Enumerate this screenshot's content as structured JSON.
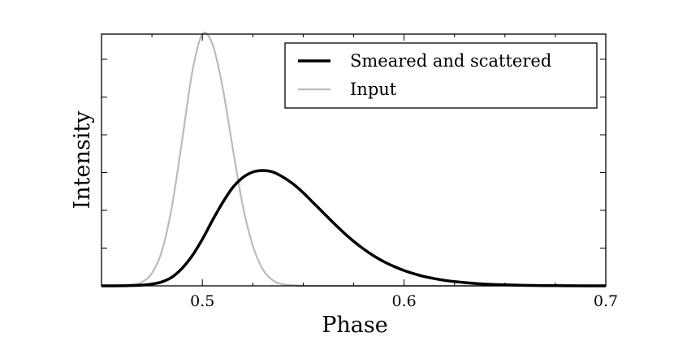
{
  "chart_data": {
    "type": "line",
    "title": "",
    "xlabel": "Phase",
    "ylabel": "Intensity",
    "xlim": [
      0.45,
      0.7
    ],
    "ylim": [
      0,
      1.0
    ],
    "xticks": [
      0.5,
      0.6,
      0.7
    ],
    "xtick_labels": [
      "0.5",
      "0.6",
      "0.7"
    ],
    "yticks": [
      0.15,
      0.3,
      0.45,
      0.6,
      0.75,
      0.9
    ],
    "ytick_labels_visible": false,
    "legend_position": "top-right",
    "series": [
      {
        "name": "Smeared and scattered",
        "color": "#000000",
        "x": [
          0.45,
          0.46,
          0.47,
          0.475,
          0.48,
          0.485,
          0.49,
          0.495,
          0.5,
          0.505,
          0.51,
          0.515,
          0.52,
          0.525,
          0.53,
          0.535,
          0.54,
          0.545,
          0.55,
          0.555,
          0.56,
          0.565,
          0.57,
          0.575,
          0.58,
          0.585,
          0.59,
          0.595,
          0.6,
          0.605,
          0.61,
          0.62,
          0.63,
          0.64,
          0.65,
          0.66,
          0.67,
          0.68,
          0.69,
          0.7
        ],
        "y": [
          0,
          0.0005,
          0.003,
          0.007,
          0.016,
          0.035,
          0.07,
          0.12,
          0.185,
          0.26,
          0.33,
          0.39,
          0.43,
          0.452,
          0.458,
          0.452,
          0.432,
          0.405,
          0.37,
          0.33,
          0.29,
          0.25,
          0.212,
          0.177,
          0.146,
          0.119,
          0.096,
          0.077,
          0.061,
          0.048,
          0.037,
          0.022,
          0.013,
          0.007,
          0.004,
          0.002,
          0.001,
          0.0005,
          0.0002,
          0.0001
        ]
      },
      {
        "name": "Input",
        "color": "#bbbbbb",
        "x": [
          0.45,
          0.46,
          0.465,
          0.47,
          0.475,
          0.48,
          0.485,
          0.49,
          0.495,
          0.5,
          0.505,
          0.51,
          0.515,
          0.52,
          0.525,
          0.53,
          0.535,
          0.54,
          0.55,
          0.56,
          0.7
        ],
        "y": [
          0,
          0.0005,
          0.004,
          0.015,
          0.05,
          0.14,
          0.32,
          0.58,
          0.85,
          1.0,
          0.96,
          0.79,
          0.55,
          0.32,
          0.16,
          0.065,
          0.022,
          0.006,
          0.0005,
          0,
          0
        ]
      }
    ]
  }
}
